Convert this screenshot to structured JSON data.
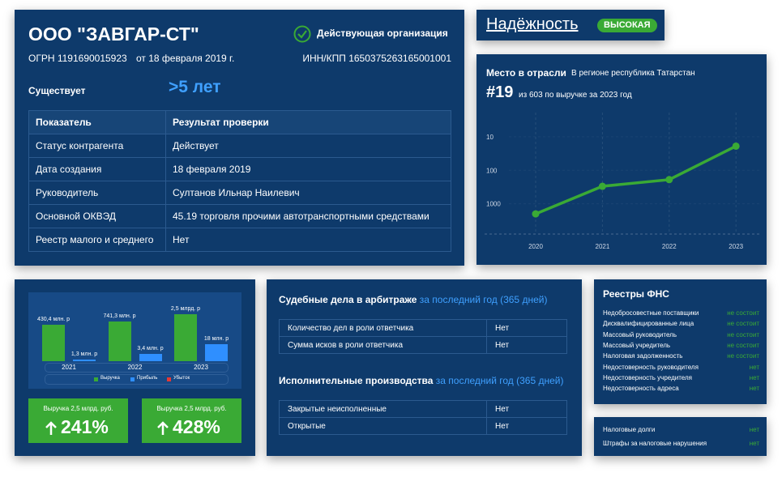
{
  "company": {
    "name": "ООО \"ЗАВГАР-СТ\"",
    "status": "Действующая организация",
    "ogrn": "ОГРН 1191690015923",
    "ogrn_date": "от 18 февраля 2019 г.",
    "inn": "ИНН/КПП 1650375263165001001",
    "exists_label": "Существует",
    "exists_value": ">5 лет",
    "table": {
      "header": [
        "Показатель",
        "Результат проверки"
      ],
      "rows": [
        [
          "Статус контрагента",
          "Действует"
        ],
        [
          "Дата создания",
          "18 февраля 2019"
        ],
        [
          "Руководитель",
          "Султанов Ильнар Наилевич"
        ],
        [
          "Основной ОКВЭД",
          "45.19 торговля прочими автотранспортными средствами"
        ],
        [
          "Реестр малого и среднего",
          "Нет"
        ]
      ]
    }
  },
  "reliability": {
    "label": "Надёжность",
    "level": "ВЫСОКАЯ"
  },
  "chart_data": [
    {
      "type": "line",
      "title": "Место в отрасли",
      "subtitle": "В регионе республика Татарстан",
      "annotations": [
        "#19",
        "из 603 по выручке за 2023 год"
      ],
      "categories": [
        "2020",
        "2021",
        "2022",
        "2023"
      ],
      "series": [
        {
          "color": "#3aaa35",
          "values": [
            2000,
            300,
            190,
            19
          ]
        }
      ],
      "ylim": [
        2,
        8000
      ],
      "yticks": [
        10,
        100,
        1000
      ],
      "log": true,
      "inverted": true,
      "grid": true
    },
    {
      "type": "bar",
      "categories": [
        "2021",
        "2022",
        "2023"
      ],
      "series": [
        {
          "name": "Выручка",
          "color": "#3aaa35",
          "values": [
            430.4,
            741.3,
            2500
          ],
          "value_labels": [
            "430,4 млн. р",
            "741,3 млн. р",
            "2,5 млрд. р"
          ]
        },
        {
          "name": "Прибыль",
          "color": "#2f8fff",
          "values": [
            1.3,
            3.4,
            18
          ],
          "value_labels": [
            "1,3 млн. р",
            "3,4 млн. р",
            "18 млн. р"
          ]
        },
        {
          "name": "Убыток",
          "color": "#e53935",
          "values": [
            null,
            null,
            null
          ]
        }
      ],
      "ylim": [
        1,
        3000
      ],
      "log": true
    }
  ],
  "growth_cards": [
    {
      "caption": "Выручка 2,5 млрд. руб.",
      "value": "241%"
    },
    {
      "caption": "Выручка 2,5 млрд. руб.",
      "value": "428%"
    }
  ],
  "courts": {
    "arbitration": {
      "title": "Судебные дела в арбитраже",
      "period": "за последний год (365 дней)",
      "rows": [
        [
          "Количество дел в роли ответчика",
          "Нет"
        ],
        [
          "Сумма исков в роли ответчика",
          "Нет"
        ]
      ]
    },
    "enforcement": {
      "title": "Исполнительные производства",
      "period": "за последний год (365 дней)",
      "rows": [
        [
          "Закрытые неисполненные",
          "Нет"
        ],
        [
          "Открытые",
          "Нет"
        ]
      ]
    }
  },
  "fns": {
    "title": "Реестры ФНС",
    "rows": [
      [
        "Недобросовестные поставщики",
        "не состоит"
      ],
      [
        "Дисквалифицированные лица",
        "не состоит"
      ],
      [
        "Массовый руководитель",
        "не состоит"
      ],
      [
        "Массовый учредитель",
        "не состоит"
      ],
      [
        "Налоговая задолженность",
        "не состоит"
      ],
      [
        "Недостоверность руководителя",
        "нет"
      ],
      [
        "Недостоверность учредителя",
        "нет"
      ],
      [
        "Недостоверность адреса",
        "нет"
      ]
    ]
  },
  "taxes": {
    "rows": [
      [
        "Налоговые долги",
        "нет"
      ],
      [
        "Штрафы за налоговые нарушения",
        "нет"
      ]
    ]
  }
}
